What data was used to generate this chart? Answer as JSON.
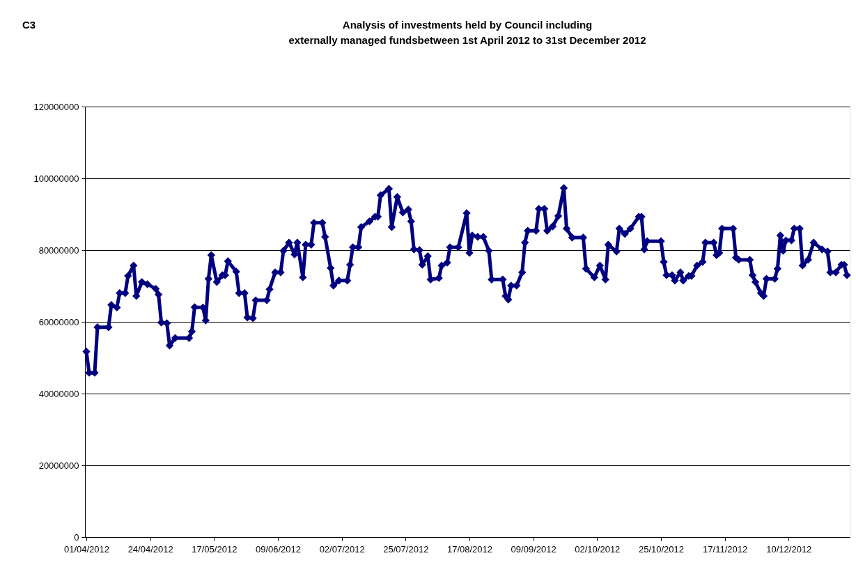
{
  "chart_data": {
    "type": "line",
    "title": "Analysis of investments held by Council including\nexternally managed fundsbetween 1st April 2012 to 31st  December 2012",
    "annotations": [
      "C3"
    ],
    "marker": "diamond",
    "line_style": "solid",
    "grid": "y",
    "legend": false,
    "ylim": [
      0,
      120000000
    ],
    "yticks": [
      0,
      20000000,
      40000000,
      60000000,
      80000000,
      100000000,
      120000000
    ],
    "xlim": [
      "2012-03-31T12:00",
      "2013-01-01T00:00"
    ],
    "xticks": [
      {
        "value": "2012-04-01",
        "label": "01/04/2012"
      },
      {
        "value": "2012-04-24",
        "label": "24/04/2012"
      },
      {
        "value": "2012-05-17",
        "label": "17/05/2012"
      },
      {
        "value": "2012-06-09",
        "label": "09/06/2012"
      },
      {
        "value": "2012-07-02",
        "label": "02/07/2012"
      },
      {
        "value": "2012-07-25",
        "label": "25/07/2012"
      },
      {
        "value": "2012-08-17",
        "label": "17/08/2012"
      },
      {
        "value": "2012-09-09",
        "label": "09/09/2012"
      },
      {
        "value": "2012-10-02",
        "label": "02/10/2012"
      },
      {
        "value": "2012-10-25",
        "label": "25/10/2012"
      },
      {
        "value": "2012-11-17",
        "label": "17/11/2012"
      },
      {
        "value": "2012-12-10",
        "label": "10/12/2012"
      }
    ],
    "x": [
      "2012-04-01",
      "2012-04-02",
      "2012-04-04",
      "2012-04-05",
      "2012-04-09",
      "2012-04-10",
      "2012-04-12",
      "2012-04-13",
      "2012-04-15",
      "2012-04-16",
      "2012-04-18",
      "2012-04-19",
      "2012-04-21",
      "2012-04-23",
      "2012-04-26",
      "2012-04-27",
      "2012-04-28",
      "2012-04-30",
      "2012-05-01",
      "2012-05-03",
      "2012-05-08",
      "2012-05-09",
      "2012-05-10",
      "2012-05-13",
      "2012-05-14",
      "2012-05-15",
      "2012-05-16",
      "2012-05-18",
      "2012-05-20",
      "2012-05-21",
      "2012-05-22",
      "2012-05-25",
      "2012-05-26",
      "2012-05-28",
      "2012-05-29",
      "2012-05-31",
      "2012-06-01",
      "2012-06-05",
      "2012-06-06",
      "2012-06-08",
      "2012-06-10",
      "2012-06-11",
      "2012-06-13",
      "2012-06-15",
      "2012-06-16",
      "2012-06-18",
      "2012-06-19",
      "2012-06-21",
      "2012-06-22",
      "2012-06-25",
      "2012-06-26",
      "2012-06-28",
      "2012-06-29",
      "2012-07-01",
      "2012-07-04",
      "2012-07-05",
      "2012-07-06",
      "2012-07-08",
      "2012-07-09",
      "2012-07-12",
      "2012-07-14",
      "2012-07-15",
      "2012-07-16",
      "2012-07-19",
      "2012-07-20",
      "2012-07-22",
      "2012-07-24",
      "2012-07-26",
      "2012-07-27",
      "2012-07-28",
      "2012-07-30",
      "2012-07-31",
      "2012-08-02",
      "2012-08-03",
      "2012-08-06",
      "2012-08-07",
      "2012-08-09",
      "2012-08-10",
      "2012-08-13",
      "2012-08-16",
      "2012-08-17",
      "2012-08-18",
      "2012-08-20",
      "2012-08-22",
      "2012-08-24",
      "2012-08-25",
      "2012-08-29",
      "2012-08-30",
      "2012-08-31",
      "2012-09-01",
      "2012-09-03",
      "2012-09-05",
      "2012-09-06",
      "2012-09-07",
      "2012-09-10",
      "2012-09-11",
      "2012-09-13",
      "2012-09-14",
      "2012-09-16",
      "2012-09-18",
      "2012-09-20",
      "2012-09-21",
      "2012-09-23",
      "2012-09-27",
      "2012-09-28",
      "2012-10-01",
      "2012-10-03",
      "2012-10-05",
      "2012-10-06",
      "2012-10-09",
      "2012-10-10",
      "2012-10-12",
      "2012-10-14",
      "2012-10-17",
      "2012-10-18",
      "2012-10-19",
      "2012-10-20",
      "2012-10-25",
      "2012-10-26",
      "2012-10-27",
      "2012-10-29",
      "2012-10-30",
      "2012-11-01",
      "2012-11-02",
      "2012-11-04",
      "2012-11-05",
      "2012-11-07",
      "2012-11-09",
      "2012-11-10",
      "2012-11-13",
      "2012-11-14",
      "2012-11-15",
      "2012-11-16",
      "2012-11-20",
      "2012-11-21",
      "2012-11-22",
      "2012-11-26",
      "2012-11-27",
      "2012-11-28",
      "2012-11-30",
      "2012-12-01",
      "2012-12-02",
      "2012-12-05",
      "2012-12-06",
      "2012-12-07",
      "2012-12-08",
      "2012-12-09",
      "2012-12-11",
      "2012-12-12",
      "2012-12-14",
      "2012-12-15",
      "2012-12-17",
      "2012-12-19",
      "2012-12-22",
      "2012-12-24",
      "2012-12-25",
      "2012-12-27",
      "2012-12-29",
      "2012-12-30",
      "2012-12-31"
    ],
    "series": [
      {
        "color": "#000080",
        "values": [
          51700000,
          45800000,
          45800000,
          58500000,
          58500000,
          64700000,
          64000000,
          68000000,
          68000000,
          72800000,
          75700000,
          67200000,
          71100000,
          70500000,
          69200000,
          67600000,
          59800000,
          59600000,
          53400000,
          55500000,
          55500000,
          57300000,
          64100000,
          64000000,
          60400000,
          72000000,
          78600000,
          71100000,
          73000000,
          73000000,
          76900000,
          74000000,
          68000000,
          68000000,
          61200000,
          61000000,
          66000000,
          66000000,
          69100000,
          73800000,
          73800000,
          79800000,
          82100000,
          78800000,
          82100000,
          72400000,
          81500000,
          81500000,
          87600000,
          87600000,
          83700000,
          75000000,
          70100000,
          71500000,
          71500000,
          75900000,
          80800000,
          80800000,
          86400000,
          88000000,
          89300000,
          89300000,
          95300000,
          97100000,
          86400000,
          94800000,
          90500000,
          91300000,
          88000000,
          80200000,
          80000000,
          75900000,
          78300000,
          71800000,
          72200000,
          75700000,
          76500000,
          80800000,
          80800000,
          90300000,
          79200000,
          84100000,
          83700000,
          83700000,
          79800000,
          71800000,
          71800000,
          67200000,
          66200000,
          70100000,
          70100000,
          73800000,
          82100000,
          85400000,
          85400000,
          91500000,
          91500000,
          85400000,
          86600000,
          89500000,
          97300000,
          86000000,
          83500000,
          83500000,
          74800000,
          72400000,
          75700000,
          71800000,
          81500000,
          79600000,
          86000000,
          84500000,
          86000000,
          89300000,
          89300000,
          80200000,
          82500000,
          82500000,
          76700000,
          73000000,
          73000000,
          71500000,
          73800000,
          71500000,
          72800000,
          72800000,
          75700000,
          76700000,
          82100000,
          82100000,
          78600000,
          79200000,
          86000000,
          86000000,
          77900000,
          77300000,
          77300000,
          73000000,
          71100000,
          68000000,
          67200000,
          72000000,
          72000000,
          74800000,
          84100000,
          79800000,
          82700000,
          82700000,
          86000000,
          86000000,
          75700000,
          77300000,
          82100000,
          80200000,
          79600000,
          73800000,
          73800000,
          75900000,
          75900000,
          73000000
        ]
      }
    ]
  }
}
